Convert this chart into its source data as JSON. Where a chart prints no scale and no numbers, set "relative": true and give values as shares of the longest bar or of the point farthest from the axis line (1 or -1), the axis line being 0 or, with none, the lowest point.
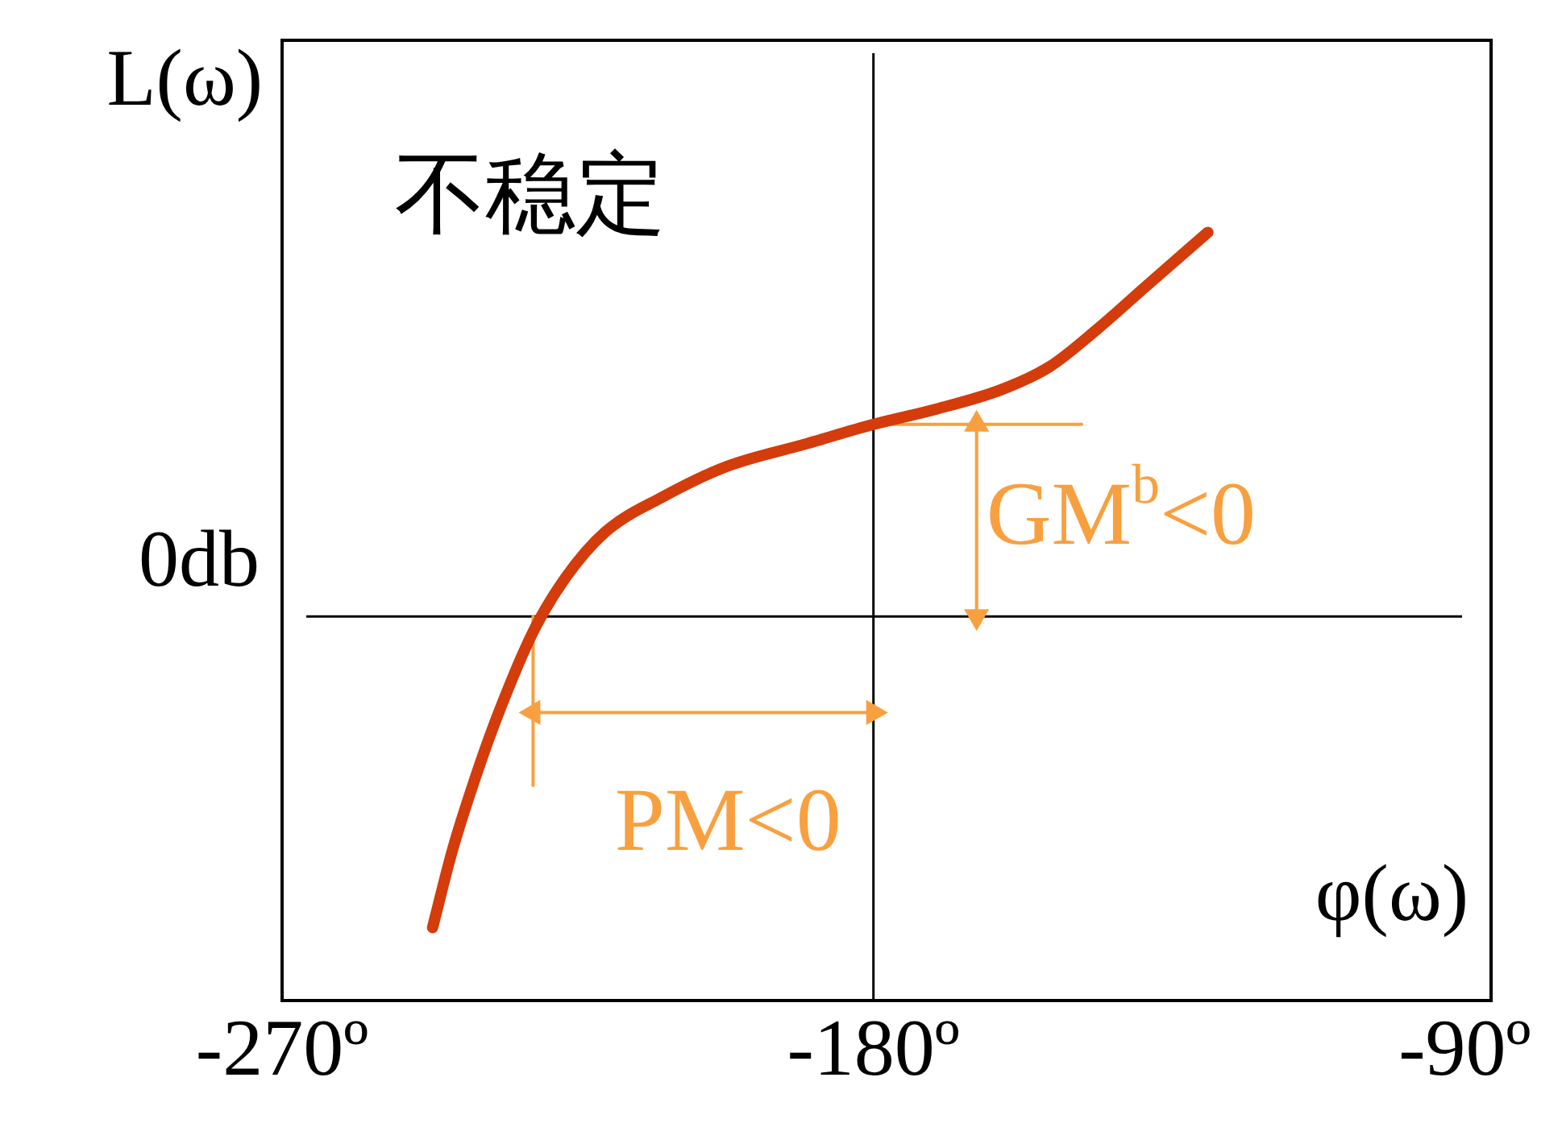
{
  "chart_data": {
    "type": "line",
    "relative": true,
    "xlabel": "φ(ω)",
    "ylabel": "L(ω)",
    "xlim": [
      -270,
      -86
    ],
    "xticks": [
      {
        "value": -270,
        "label": "-270º"
      },
      {
        "value": -180,
        "label": "-180º"
      },
      {
        "value": -90,
        "label": "-90º"
      }
    ],
    "tick_labels": "x",
    "grid": false,
    "legend": false,
    "marker": "none",
    "series": [
      {
        "color": "#d43c0c",
        "x": [
          -247.1,
          -244.1,
          -240.4,
          -236.8,
          -231.8,
          -226.9,
          -220.8,
          -212.2,
          -202.4,
          -190.1,
          -180,
          -170.4,
          -160.6,
          -153.2,
          -145.8,
          -138.5,
          -129.1
        ],
        "values": [
          -0.81,
          -0.61,
          -0.41,
          -0.24,
          -0.04,
          0.1,
          0.22,
          0.31,
          0.39,
          0.45,
          0.5,
          0.54,
          0.59,
          0.65,
          0.75,
          0.86,
          1
        ]
      },
      {
        "color": "#f8a040",
        "marker": "triangle",
        "x": [
          -231.8,
          -180
        ],
        "values": [
          -0.25,
          -0.25
        ]
      },
      {
        "color": "#f8a040",
        "marker": "triangle",
        "x": [
          -164.3,
          -164.3
        ],
        "values": [
          0,
          0.5
        ]
      },
      {
        "color": "#f8a040",
        "x": [
          -180,
          -148.3
        ],
        "values": [
          0.5,
          0.5
        ]
      },
      {
        "color": "#f8a040",
        "x": [
          -231.8,
          -231.8
        ],
        "values": [
          0,
          -0.44
        ]
      }
    ],
    "ref_lines": [
      {
        "axis": "y",
        "value": 0,
        "color": "#000000"
      },
      {
        "axis": "x",
        "value": -180,
        "color": "#000000"
      }
    ],
    "annotations": [
      "不稳定",
      "0db",
      "GM$^{b}$<0",
      "PM<0"
    ]
  }
}
